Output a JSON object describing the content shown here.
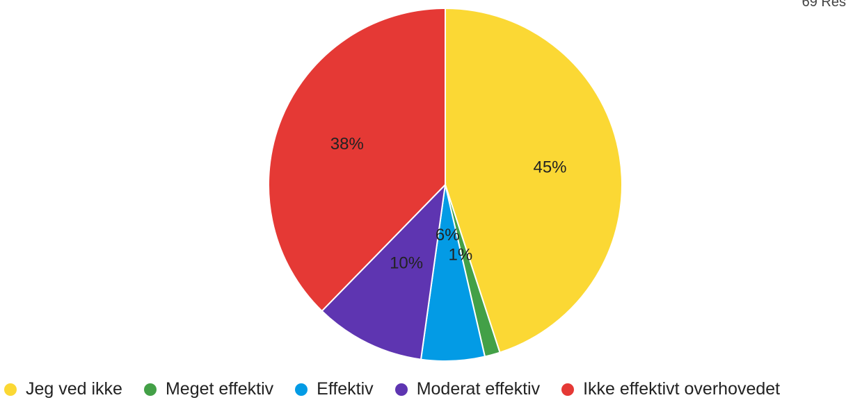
{
  "response_count": "69 Res",
  "chart_data": {
    "type": "pie",
    "title": "",
    "legend_position": "bottom",
    "slices": [
      {
        "label": "Jeg ved ikke",
        "value": 45,
        "display": "45%",
        "color": "#fbd834"
      },
      {
        "label": "Meget effektiv",
        "value": 1.4,
        "display": "1%",
        "color": "#43a047"
      },
      {
        "label": "Effektiv",
        "value": 5.8,
        "display": "6%",
        "color": "#039be5"
      },
      {
        "label": "Moderat effektiv",
        "value": 10.1,
        "display": "10%",
        "color": "#5e35b1"
      },
      {
        "label": "Ikke effektivt overhovedet",
        "value": 37.7,
        "display": "38%",
        "color": "#e53935"
      }
    ]
  }
}
